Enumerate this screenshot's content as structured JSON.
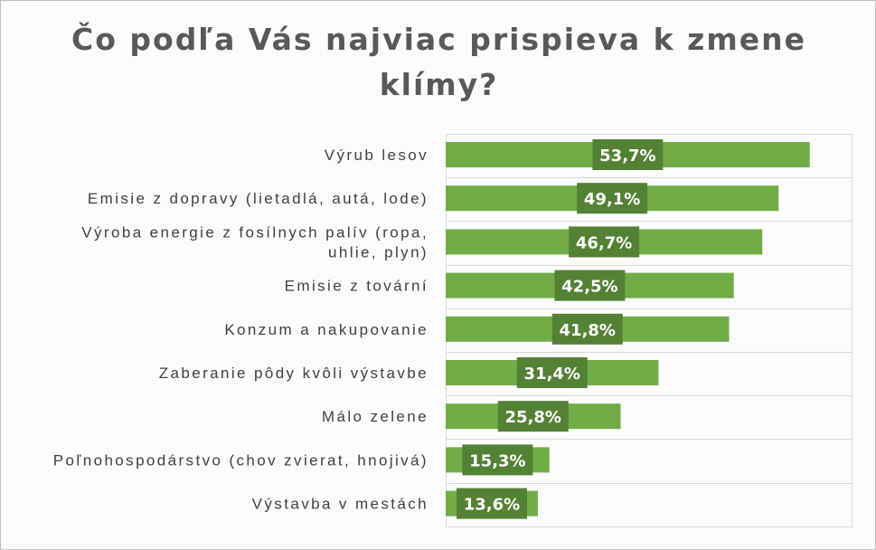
{
  "chart_data": {
    "type": "bar",
    "orientation": "horizontal",
    "title_lines": [
      "Čo podľa Vás najviac prispieva k zmene",
      "klímy?"
    ],
    "categories": [
      [
        "Výrub lesov"
      ],
      [
        "Emisie z dopravy (lietadlá, autá, lode)"
      ],
      [
        "Výroba energie z fosílnych palív (ropa,",
        "uhlie, plyn)"
      ],
      [
        "Emisie z tovární"
      ],
      [
        "Konzum a nakupovanie"
      ],
      [
        "Zaberanie pôdy kvôli výstavbe"
      ],
      [
        "Málo zelene"
      ],
      [
        "Poľnohospodárstvo (chov zvierat, hnojivá)"
      ],
      [
        "Výstavba v mestách"
      ]
    ],
    "values": [
      53.7,
      49.1,
      46.7,
      42.5,
      41.8,
      31.4,
      25.8,
      15.3,
      13.6
    ],
    "value_labels": [
      "53,7%",
      "49,1%",
      "46,7%",
      "42,5%",
      "41,8%",
      "31,4%",
      "25,8%",
      "15,3%",
      "13,6%"
    ],
    "xlim": [
      0,
      60
    ],
    "grid": true,
    "colors": {
      "bar": "#70ad47",
      "label_box": "#548235",
      "label_text": "#ffffff",
      "category_text": "#404040",
      "title_text": "#595959",
      "gridline": "#d9d9d9"
    }
  }
}
